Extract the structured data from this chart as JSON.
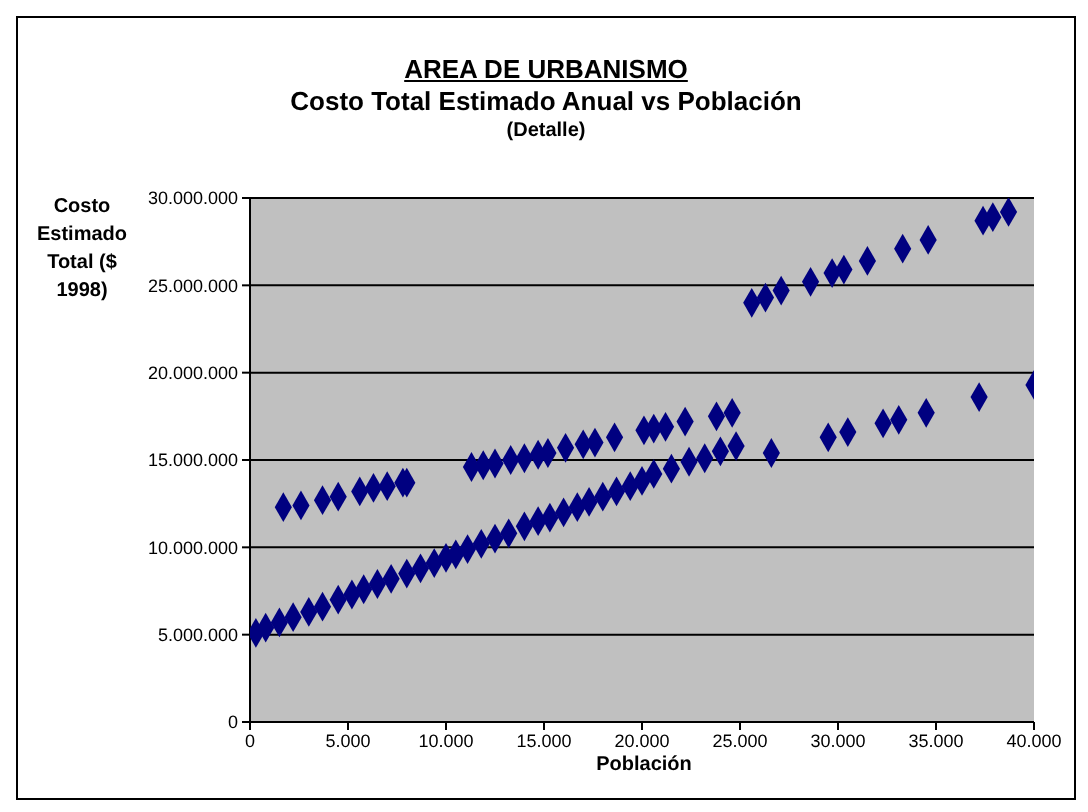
{
  "chart_data": {
    "type": "scatter",
    "title": "AREA DE URBANISMO",
    "subtitle": "Costo Total Estimado Anual vs Población",
    "annotations": [
      "(Detalle)"
    ],
    "xlabel": "Población",
    "ylabel": "Costo Estimado Total ($ 1998)",
    "series": [
      {
        "color": "#000080",
        "x": [
          300,
          800,
          1500,
          2200,
          3000,
          3700,
          4500,
          5200,
          5800,
          6500,
          7200,
          8000,
          8700,
          9400,
          10000,
          10500,
          11100,
          11800,
          12500,
          13200,
          14000,
          14700,
          15300,
          16000,
          16700,
          17300,
          18000,
          18700,
          19400,
          20000,
          20600,
          21500,
          22400,
          23200,
          24000,
          24800,
          26600,
          29500,
          30500,
          32300,
          33100,
          34500,
          37200,
          40000,
          1700,
          2600,
          3700,
          4500,
          5600,
          6300,
          7000,
          7800,
          8000,
          11300,
          11900,
          12500,
          13300,
          14000,
          14700,
          15200,
          16100,
          17000,
          17600,
          18600,
          20100,
          20600,
          21200,
          22200,
          23800,
          24600,
          25600,
          26300,
          27100,
          28600,
          29700,
          30300,
          31500,
          33300,
          34600,
          37400,
          37900,
          38700
        ],
        "values": [
          5100000,
          5400000,
          5700000,
          6000000,
          6300000,
          6600000,
          7000000,
          7300000,
          7600000,
          7900000,
          8200000,
          8500000,
          8800000,
          9100000,
          9400000,
          9600000,
          9900000,
          10200000,
          10500000,
          10800000,
          11200000,
          11500000,
          11700000,
          12000000,
          12300000,
          12600000,
          12900000,
          13200000,
          13500000,
          13800000,
          14200000,
          14500000,
          14900000,
          15100000,
          15500000,
          15800000,
          15400000,
          16300000,
          16600000,
          17100000,
          17300000,
          17700000,
          18600000,
          19300000,
          12300000,
          12400000,
          12700000,
          12900000,
          13200000,
          13400000,
          13500000,
          13700000,
          13700000,
          14600000,
          14700000,
          14800000,
          15000000,
          15100000,
          15300000,
          15400000,
          15700000,
          15900000,
          16000000,
          16300000,
          16700000,
          16800000,
          16900000,
          17200000,
          17500000,
          17700000,
          24000000,
          24300000,
          24700000,
          25200000,
          25700000,
          25900000,
          26400000,
          27100000,
          27600000,
          28700000,
          28900000,
          29200000
        ]
      }
    ],
    "xlim": [
      0,
      40000
    ],
    "xticks": [
      0,
      {
        "value": 5000,
        "label": "5.000"
      },
      {
        "value": 10000,
        "label": "10.000"
      },
      {
        "value": 15000,
        "label": "15.000"
      },
      {
        "value": 20000,
        "label": "20.000"
      },
      {
        "value": 25000,
        "label": "25.000"
      },
      {
        "value": 30000,
        "label": "30.000"
      },
      {
        "value": 35000,
        "label": "35.000"
      },
      {
        "value": 40000,
        "label": "40.000"
      }
    ],
    "ylim": [
      0,
      30000000
    ],
    "yticks": [
      0,
      {
        "value": 5000000,
        "label": "5.000.000"
      },
      {
        "value": 10000000,
        "label": "10.000.000"
      },
      {
        "value": 15000000,
        "label": "15.000.000"
      },
      {
        "value": 20000000,
        "label": "20.000.000"
      },
      {
        "value": 25000000,
        "label": "25.000.000"
      },
      {
        "value": 30000000,
        "label": "30.000.000"
      }
    ],
    "grid": "y",
    "marker": "diamond",
    "legend": false
  }
}
